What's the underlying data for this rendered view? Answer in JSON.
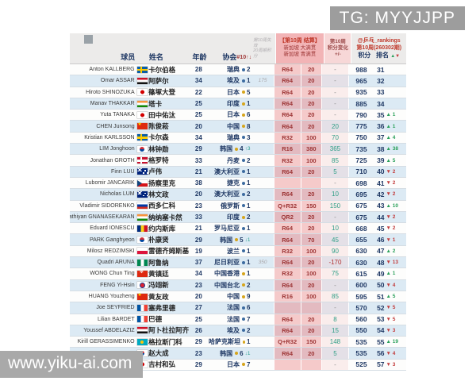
{
  "overlays": {
    "tg_label": "TG: MYYJJPP",
    "site_watermark": "www.yiku-ai.com"
  },
  "table": {
    "headers": {
      "player": "球员",
      "name": "姓名",
      "age": "年龄",
      "assoc": "协会",
      "assoc_sort": "#10↑↓",
      "expire_line1": "第10周失效",
      "expire_line2": "20周期积分",
      "result_title": "【第10周 结算】",
      "result_line2": "新加坡 大满贯",
      "result_line3": "新加坡 青满贯",
      "change_line1": "第10周",
      "change_line2": "积分变化",
      "change_line3": "+/-",
      "brand": "@乒乓_rankings",
      "period": "第10周(260302期)",
      "points": "积分",
      "rank": "排名",
      "rank_up_glyph": "▲",
      "rank_down_glyph": "▼"
    },
    "rows": [
      {
        "en": "Anton KALLBERG",
        "zh": "卡尔伯格",
        "flag": "swe",
        "flag_name": "sweden-flag",
        "age": "28",
        "assoc": "瑞典",
        "dot": "blue",
        "num": "2",
        "move": "",
        "exp": "",
        "rd": "R64",
        "rdp": "20",
        "chg": "-",
        "pts": "988",
        "rank": "31",
        "rk_dir": "",
        "rk_chg": ""
      },
      {
        "en": "Omar ASSAR",
        "zh": "阿萨尔",
        "flag": "egy",
        "flag_name": "egypt-flag",
        "age": "34",
        "assoc": "埃及",
        "dot": "blue",
        "num": "1",
        "move": "",
        "exp": "175",
        "rd": "R64",
        "rdp": "20",
        "chg": "-",
        "pts": "965",
        "rank": "32",
        "rk_dir": "",
        "rk_chg": ""
      },
      {
        "en": "Hiroto SHINOZUKA",
        "zh": "篠塚大登",
        "flag": "jpn",
        "flag_name": "japan-flag",
        "age": "22",
        "assoc": "日本",
        "dot": "gold",
        "num": "5",
        "move": "",
        "exp": "",
        "rd": "R64",
        "rdp": "20",
        "chg": "-",
        "pts": "935",
        "rank": "33",
        "rk_dir": "",
        "rk_chg": ""
      },
      {
        "en": "Manav THAKKAR",
        "zh": "塔卡",
        "flag": "ind",
        "flag_name": "india-flag",
        "age": "25",
        "assoc": "印度",
        "dot": "gold",
        "num": "1",
        "move": "",
        "exp": "",
        "rd": "R64",
        "rdp": "20",
        "chg": "-",
        "pts": "885",
        "rank": "34",
        "rk_dir": "",
        "rk_chg": ""
      },
      {
        "en": "Yuta TANAKA",
        "zh": "田中佑汰",
        "flag": "jpn",
        "flag_name": "japan-flag",
        "age": "25",
        "assoc": "日本",
        "dot": "gold",
        "num": "6",
        "move": "",
        "exp": "",
        "rd": "R64",
        "rdp": "20",
        "chg": "-",
        "pts": "790",
        "rank": "35",
        "rk_dir": "up",
        "rk_chg": "1"
      },
      {
        "en": "CHEN Junsong",
        "zh": "陈俊菘",
        "flag": "chn",
        "flag_name": "china-flag",
        "age": "20",
        "assoc": "中国",
        "dot": "gold",
        "num": "8",
        "move": "",
        "exp": "",
        "rd": "R64",
        "rdp": "20",
        "chg": "20",
        "pts": "775",
        "rank": "36",
        "rk_dir": "up",
        "rk_chg": "1"
      },
      {
        "en": "Kristian KARLSSON",
        "zh": "卡尔森",
        "flag": "swe",
        "flag_name": "sweden-flag",
        "age": "34",
        "assoc": "瑞典",
        "dot": "blue",
        "num": "3",
        "move": "",
        "exp": "",
        "rd": "R32",
        "rdp": "100",
        "chg": "70",
        "pts": "750",
        "rank": "37",
        "rk_dir": "up",
        "rk_chg": "4"
      },
      {
        "en": "LIM Jonghoon",
        "zh": "林钟勋",
        "flag": "kor",
        "flag_name": "south-korea-flag",
        "age": "29",
        "assoc": "韩国",
        "dot": "gold",
        "num": "4",
        "move": "↑3",
        "exp": "",
        "rd": "R16",
        "rdp": "380",
        "chg": "365",
        "pts": "735",
        "rank": "38",
        "rk_dir": "up",
        "rk_chg": "38"
      },
      {
        "en": "Jonathan GROTH",
        "zh": "格罗特",
        "flag": "den",
        "flag_name": "denmark-flag",
        "age": "33",
        "assoc": "丹麦",
        "dot": "blue",
        "num": "2",
        "move": "",
        "exp": "",
        "rd": "R32",
        "rdp": "100",
        "chg": "85",
        "pts": "725",
        "rank": "39",
        "rk_dir": "up",
        "rk_chg": "5"
      },
      {
        "en": "Finn LUU",
        "zh": "卢伟",
        "flag": "aus",
        "flag_name": "australia-flag",
        "age": "21",
        "assoc": "澳大利亚",
        "dot": "blue",
        "num": "1",
        "move": "",
        "exp": "",
        "rd": "R64",
        "rdp": "20",
        "chg": "5",
        "pts": "710",
        "rank": "40",
        "rk_dir": "down",
        "rk_chg": "2"
      },
      {
        "en": "Lubomir JANCARIK",
        "zh": "扬察里克",
        "flag": "cze",
        "flag_name": "czech-flag",
        "age": "38",
        "assoc": "捷克",
        "dot": "blue",
        "num": "1",
        "move": "",
        "exp": "",
        "rd": "",
        "rdp": "",
        "chg": "-",
        "pts": "698",
        "rank": "41",
        "rk_dir": "down",
        "rk_chg": "2"
      },
      {
        "en": "Nicholas LUM",
        "zh": "林文政",
        "flag": "aus",
        "flag_name": "australia-flag",
        "age": "20",
        "assoc": "澳大利亚",
        "dot": "blue",
        "num": "2",
        "move": "",
        "exp": "",
        "rd": "R64",
        "rdp": "20",
        "chg": "10",
        "pts": "695",
        "rank": "42",
        "rk_dir": "down",
        "rk_chg": "2"
      },
      {
        "en": "Vladimir SIDORENKO",
        "zh": "西多仁科",
        "flag": "rus",
        "flag_name": "russia-flag",
        "age": "23",
        "assoc": "俄罗斯",
        "dot": "blue",
        "num": "1",
        "move": "",
        "exp": "",
        "rd": "Q+R32",
        "rdp": "150",
        "chg": "150",
        "pts": "675",
        "rank": "43",
        "rk_dir": "up",
        "rk_chg": "10"
      },
      {
        "en": "Sathiyan GNANASEKARAN",
        "zh": "纳纳塞卡然",
        "flag": "ind",
        "flag_name": "india-flag",
        "age": "33",
        "assoc": "印度",
        "dot": "gold",
        "num": "2",
        "move": "",
        "exp": "",
        "rd": "QR2",
        "rdp": "20",
        "chg": "-",
        "pts": "675",
        "rank": "44",
        "rk_dir": "down",
        "rk_chg": "2"
      },
      {
        "en": "Eduard IONESCU",
        "zh": "约内斯库",
        "flag": "rou",
        "flag_name": "romania-flag",
        "age": "21",
        "assoc": "罗马尼亚",
        "dot": "blue",
        "num": "1",
        "move": "",
        "exp": "",
        "rd": "R64",
        "rdp": "20",
        "chg": "10",
        "pts": "668",
        "rank": "45",
        "rk_dir": "down",
        "rk_chg": "2"
      },
      {
        "en": "PARK Ganghyeon",
        "zh": "朴康贤",
        "flag": "kor",
        "flag_name": "south-korea-flag",
        "age": "29",
        "assoc": "韩国",
        "dot": "gold",
        "num": "5",
        "move": "↓1",
        "exp": "",
        "rd": "R64",
        "rdp": "70",
        "chg": "45",
        "pts": "655",
        "rank": "46",
        "rk_dir": "down",
        "rk_chg": "1"
      },
      {
        "en": "Milosz REDZIMSKI",
        "zh": "雷德齐姆斯基",
        "flag": "pol",
        "flag_name": "poland-flag",
        "age": "19",
        "assoc": "波兰",
        "dot": "blue",
        "num": "1",
        "move": "",
        "exp": "",
        "rd": "R32",
        "rdp": "100",
        "chg": "90",
        "pts": "630",
        "rank": "47",
        "rk_dir": "up",
        "rk_chg": "2"
      },
      {
        "en": "Quadri ARUNA",
        "zh": "阿鲁纳",
        "flag": "ngr",
        "flag_name": "nigeria-flag",
        "age": "37",
        "assoc": "尼日利亚",
        "dot": "blue",
        "num": "1",
        "move": "",
        "exp": "350",
        "rd": "R64",
        "rdp": "20",
        "chg": "-170",
        "pts": "630",
        "rank": "48",
        "rk_dir": "down",
        "rk_chg": "13"
      },
      {
        "en": "WONG Chun Ting",
        "zh": "黄镇廷",
        "flag": "hkg",
        "flag_name": "hong-kong-flag",
        "age": "34",
        "assoc": "中国香港",
        "dot": "gold",
        "num": "1",
        "move": "",
        "exp": "",
        "rd": "R32",
        "rdp": "100",
        "chg": "75",
        "pts": "615",
        "rank": "49",
        "rk_dir": "up",
        "rk_chg": "1"
      },
      {
        "en": "FENG Yi-Hsin",
        "zh": "冯翊新",
        "flag": "tpe",
        "flag_name": "chinese-taipei-flag",
        "age": "23",
        "assoc": "中国台北",
        "dot": "gold",
        "num": "2",
        "move": "",
        "exp": "",
        "rd": "R64",
        "rdp": "20",
        "chg": "-",
        "pts": "600",
        "rank": "50",
        "rk_dir": "down",
        "rk_chg": "4"
      },
      {
        "en": "HUANG Youzheng",
        "zh": "黄友政",
        "flag": "chn",
        "flag_name": "china-flag",
        "age": "20",
        "assoc": "中国",
        "dot": "gold",
        "num": "9",
        "move": "",
        "exp": "",
        "rd": "R16",
        "rdp": "100",
        "chg": "85",
        "pts": "595",
        "rank": "51",
        "rk_dir": "up",
        "rk_chg": "5"
      },
      {
        "en": "Joe SEYFRIED",
        "zh": "塞弗里德",
        "flag": "fra",
        "flag_name": "france-flag",
        "age": "27",
        "assoc": "法国",
        "dot": "blue",
        "num": "6",
        "move": "",
        "exp": "",
        "rd": "",
        "rdp": "",
        "chg": "-",
        "pts": "570",
        "rank": "52",
        "rk_dir": "down",
        "rk_chg": "5"
      },
      {
        "en": "Lilian BARDET",
        "zh": "巴德",
        "flag": "fra",
        "flag_name": "france-flag",
        "age": "25",
        "assoc": "法国",
        "dot": "blue",
        "num": "7",
        "move": "",
        "exp": "",
        "rd": "R64",
        "rdp": "20",
        "chg": "8",
        "pts": "560",
        "rank": "53",
        "rk_dir": "down",
        "rk_chg": "5"
      },
      {
        "en": "Youssef ABDELAZIZ",
        "zh": "阿卜杜拉阿齐兹",
        "flag": "egy",
        "flag_name": "egypt-flag",
        "age": "26",
        "assoc": "埃及",
        "dot": "blue",
        "num": "2",
        "move": "",
        "exp": "",
        "rd": "R64",
        "rdp": "20",
        "chg": "15",
        "pts": "550",
        "rank": "54",
        "rk_dir": "down",
        "rk_chg": "3"
      },
      {
        "en": "Kirill GERASSIMENKO",
        "zh": "格拉斯门科",
        "flag": "kaz",
        "flag_name": "kazakhstan-flag",
        "age": "29",
        "assoc": "哈萨克斯坦",
        "dot": "gold",
        "num": "1",
        "move": "",
        "exp": "",
        "rd": "Q+R32",
        "rdp": "150",
        "chg": "148",
        "pts": "535",
        "rank": "55",
        "rk_dir": "up",
        "rk_chg": "19"
      },
      {
        "en": "CHO Daeseong",
        "zh": "赵大成",
        "flag": "kor",
        "flag_name": "south-korea-flag",
        "age": "23",
        "assoc": "韩国",
        "dot": "gold",
        "num": "6",
        "move": "↓1",
        "exp": "",
        "rd": "R64",
        "rdp": "20",
        "chg": "5",
        "pts": "535",
        "rank": "56",
        "rk_dir": "down",
        "rk_chg": "4"
      },
      {
        "en": "Kazuhiro YOSHIMURA",
        "zh": "吉村和弘",
        "flag": "jpn",
        "flag_name": "japan-flag",
        "age": "29",
        "assoc": "日本",
        "dot": "gold",
        "num": "7",
        "move": "",
        "exp": "",
        "rd": "",
        "rdp": "",
        "chg": "-",
        "pts": "525",
        "rank": "57",
        "rk_dir": "down",
        "rk_chg": "3"
      }
    ]
  },
  "colors": {
    "row_alt": "#dceaf4",
    "pink_cell": "#f3c0c2",
    "pink_header": "#f2b4b6",
    "navy_text": "#1f3864",
    "maroon_text": "#9c3434",
    "red_header": "#c0392b",
    "change_positive": "#2f9e86",
    "change_negative": "#b03030",
    "rank_up": "#2aa05a",
    "rank_down": "#c23b3b"
  }
}
